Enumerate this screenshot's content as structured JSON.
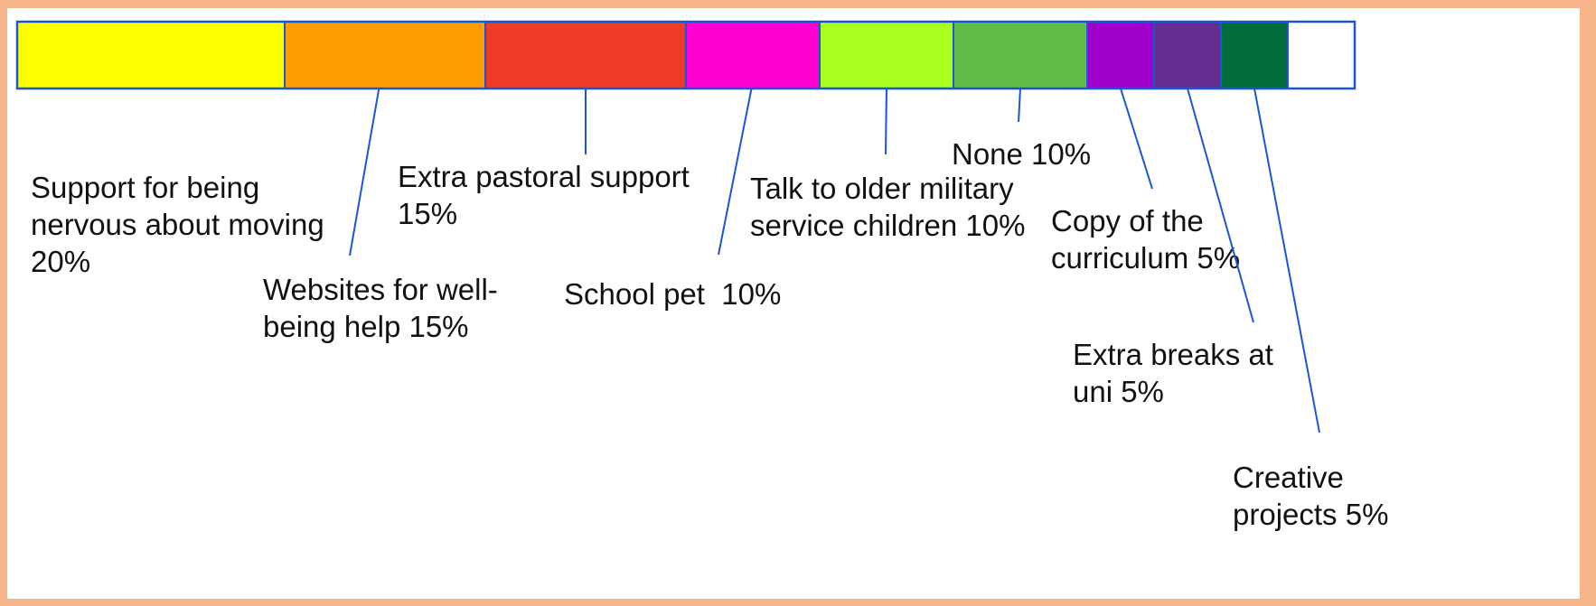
{
  "chart_data": {
    "type": "bar",
    "orientation": "stacked-horizontal",
    "unit": "%",
    "total": 100,
    "segments": [
      {
        "label_lines": [
          "Support for being",
          "nervous about moving",
          "20%"
        ],
        "value": 20,
        "color": "#ffff00"
      },
      {
        "label_lines": [
          "Websites for well-",
          "being help 15%"
        ],
        "value": 15,
        "color": "#ff9e00"
      },
      {
        "label_lines": [
          "Extra pastoral support",
          "15%"
        ],
        "value": 15,
        "color": "#ee3b27"
      },
      {
        "label_lines": [
          "School pet  10%"
        ],
        "value": 10,
        "color": "#ff00d0"
      },
      {
        "label_lines": [
          "Talk to older military",
          "service children 10%"
        ],
        "value": 10,
        "color": "#a8ff20"
      },
      {
        "label_lines": [
          "None 10%"
        ],
        "value": 10,
        "color": "#63bb47"
      },
      {
        "label_lines": [
          "Copy of the",
          "curriculum 5%"
        ],
        "value": 5,
        "color": "#a000cc"
      },
      {
        "label_lines": [
          "Extra breaks at",
          "uni 5%"
        ],
        "value": 5,
        "color": "#652d90"
      },
      {
        "label_lines": [
          "Creative",
          "projects 5%"
        ],
        "value": 5,
        "color": "#006c3c"
      }
    ],
    "outline_color": "#1a56d6",
    "leader_color": "#1a56d6"
  }
}
